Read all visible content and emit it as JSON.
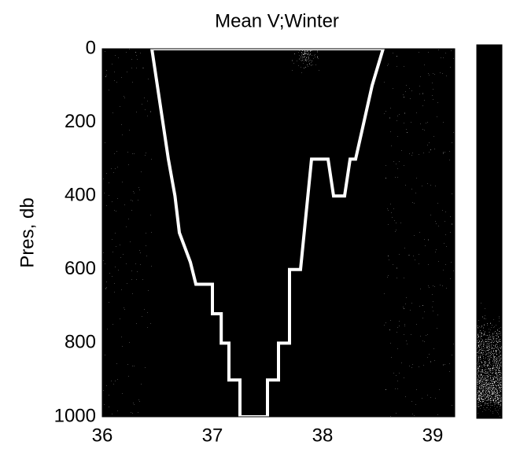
{
  "chart_data": {
    "type": "heatmap",
    "title": "Mean V;Winter",
    "ylabel": "Pres, db",
    "xlim": [
      36,
      39.2
    ],
    "xticks": [
      36,
      37,
      38,
      39
    ],
    "ylim": [
      0,
      1000
    ],
    "yticks": [
      0,
      200,
      400,
      600,
      800,
      1000
    ],
    "y_inverted": true,
    "outline": {
      "color": "#ffffff",
      "x": [
        36.45,
        36.5,
        36.55,
        36.6,
        36.66,
        36.7,
        36.8,
        36.85,
        37.0,
        37.0,
        37.08,
        37.08,
        37.15,
        37.15,
        37.25,
        37.25,
        37.5,
        37.5,
        37.6,
        37.6,
        37.7,
        37.7,
        37.8,
        37.85,
        37.9,
        38.05,
        38.1,
        38.2,
        38.25,
        38.3,
        38.45,
        38.55
      ],
      "y": [
        0,
        100,
        200,
        300,
        400,
        500,
        580,
        640,
        640,
        720,
        720,
        800,
        800,
        900,
        900,
        1000,
        1000,
        900,
        900,
        800,
        800,
        600,
        600,
        450,
        300,
        300,
        400,
        400,
        300,
        300,
        100,
        0
      ]
    },
    "colorbar": true
  }
}
